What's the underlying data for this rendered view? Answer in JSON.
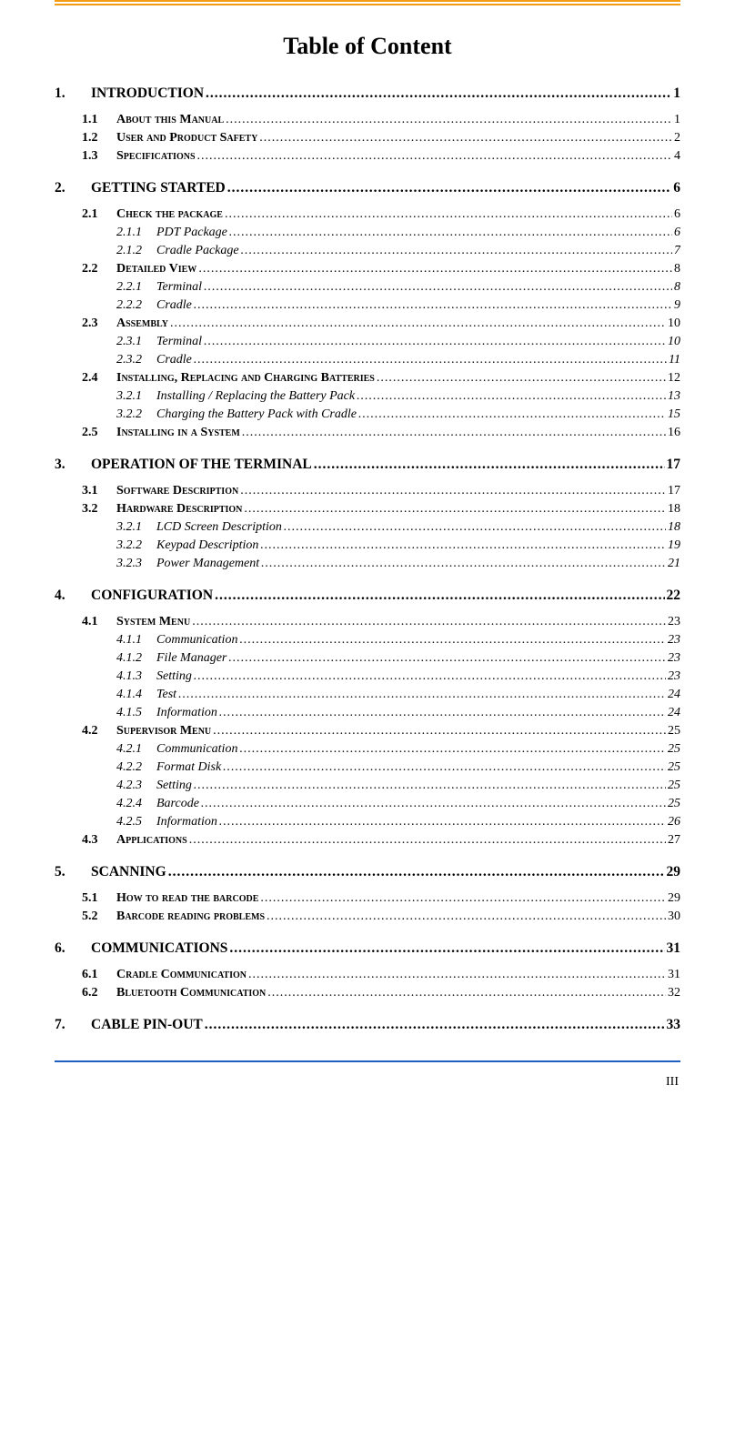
{
  "title": "Table of Content",
  "pageNumber": "III",
  "colors": {
    "topRule": "#f39c12",
    "bottomRule": "#1f5fbf",
    "text": "#000000",
    "background": "#ffffff"
  },
  "toc": [
    {
      "level": 1,
      "num": "1.",
      "label": "INTRODUCTION",
      "page": "1"
    },
    {
      "level": 2,
      "num": "1.1",
      "label": "About this Manual",
      "page": "1",
      "groupFirst": true
    },
    {
      "level": 2,
      "num": "1.2",
      "label": "User and Product Safety",
      "page": "2"
    },
    {
      "level": 2,
      "num": "1.3",
      "label": "Specifications",
      "page": "4"
    },
    {
      "level": 1,
      "num": "2.",
      "label": "GETTING STARTED",
      "page": "6"
    },
    {
      "level": 2,
      "num": "2.1",
      "label": "Check the package",
      "page": "6",
      "groupFirst": true
    },
    {
      "level": 3,
      "num": "2.1.1",
      "label": "PDT Package",
      "page": "6"
    },
    {
      "level": 3,
      "num": "2.1.2",
      "label": "Cradle Package",
      "page": "7"
    },
    {
      "level": 2,
      "num": "2.2",
      "label": "Detailed View",
      "page": "8"
    },
    {
      "level": 3,
      "num": "2.2.1",
      "label": "Terminal",
      "page": "8"
    },
    {
      "level": 3,
      "num": "2.2.2",
      "label": "Cradle",
      "page": "9"
    },
    {
      "level": 2,
      "num": "2.3",
      "label": "Assembly",
      "page": "10"
    },
    {
      "level": 3,
      "num": "2.3.1",
      "label": "Terminal",
      "page": "10"
    },
    {
      "level": 3,
      "num": "2.3.2",
      "label": "Cradle",
      "page": "11"
    },
    {
      "level": 2,
      "num": "2.4",
      "label": "Installing, Replacing and Charging Batteries",
      "page": "12"
    },
    {
      "level": 3,
      "num": "3.2.1",
      "label": "Installing / Replacing the Battery Pack",
      "page": "13"
    },
    {
      "level": 3,
      "num": "3.2.2",
      "label": "Charging the Battery Pack with Cradle",
      "page": "15"
    },
    {
      "level": 2,
      "num": "2.5",
      "label": "Installing in a System",
      "page": "16"
    },
    {
      "level": 1,
      "num": "3.",
      "label": "OPERATION OF THE TERMINAL",
      "page": "17"
    },
    {
      "level": 2,
      "num": "3.1",
      "label": "Software Description",
      "page": "17",
      "groupFirst": true
    },
    {
      "level": 2,
      "num": "3.2",
      "label": "Hardware Description",
      "page": "18"
    },
    {
      "level": 3,
      "num": "3.2.1",
      "label": "LCD Screen Description",
      "page": "18"
    },
    {
      "level": 3,
      "num": "3.2.2",
      "label": "Keypad Description",
      "page": "19"
    },
    {
      "level": 3,
      "num": "3.2.3",
      "label": "Power Management",
      "page": "21"
    },
    {
      "level": 1,
      "num": "4.",
      "label": "CONFIGURATION",
      "page": "22"
    },
    {
      "level": 2,
      "num": "4.1",
      "label": "System Menu",
      "page": "23",
      "groupFirst": true
    },
    {
      "level": 3,
      "num": "4.1.1",
      "label": "Communication",
      "page": "23"
    },
    {
      "level": 3,
      "num": "4.1.2",
      "label": "File Manager",
      "page": "23"
    },
    {
      "level": 3,
      "num": "4.1.3",
      "label": "Setting",
      "page": "23"
    },
    {
      "level": 3,
      "num": "4.1.4",
      "label": "Test",
      "page": "24"
    },
    {
      "level": 3,
      "num": "4.1.5",
      "label": "Information",
      "page": "24"
    },
    {
      "level": 2,
      "num": "4.2",
      "label": "Supervisor Menu",
      "page": "25"
    },
    {
      "level": 3,
      "num": "4.2.1",
      "label": "Communication",
      "page": "25"
    },
    {
      "level": 3,
      "num": "4.2.2",
      "label": "Format Disk",
      "page": "25"
    },
    {
      "level": 3,
      "num": "4.2.3",
      "label": "Setting",
      "page": "25"
    },
    {
      "level": 3,
      "num": "4.2.4",
      "label": "Barcode",
      "page": "25"
    },
    {
      "level": 3,
      "num": "4.2.5",
      "label": "Information",
      "page": "26"
    },
    {
      "level": 2,
      "num": "4.3",
      "label": "Applications",
      "page": "27"
    },
    {
      "level": 1,
      "num": "5.",
      "label": "SCANNING",
      "page": "29"
    },
    {
      "level": 2,
      "num": "5.1",
      "label": "How to read the barcode",
      "page": "29",
      "groupFirst": true
    },
    {
      "level": 2,
      "num": "5.2",
      "label": "Barcode reading problems",
      "page": "30"
    },
    {
      "level": 1,
      "num": "6.",
      "label": "COMMUNICATIONS",
      "page": "31"
    },
    {
      "level": 2,
      "num": "6.1",
      "label": "Cradle Communication",
      "page": "31",
      "groupFirst": true
    },
    {
      "level": 2,
      "num": "6.2",
      "label": "Bluetooth Communication",
      "page": "32"
    },
    {
      "level": 1,
      "num": "7.",
      "label": "CABLE PIN-OUT",
      "page": "33"
    }
  ]
}
